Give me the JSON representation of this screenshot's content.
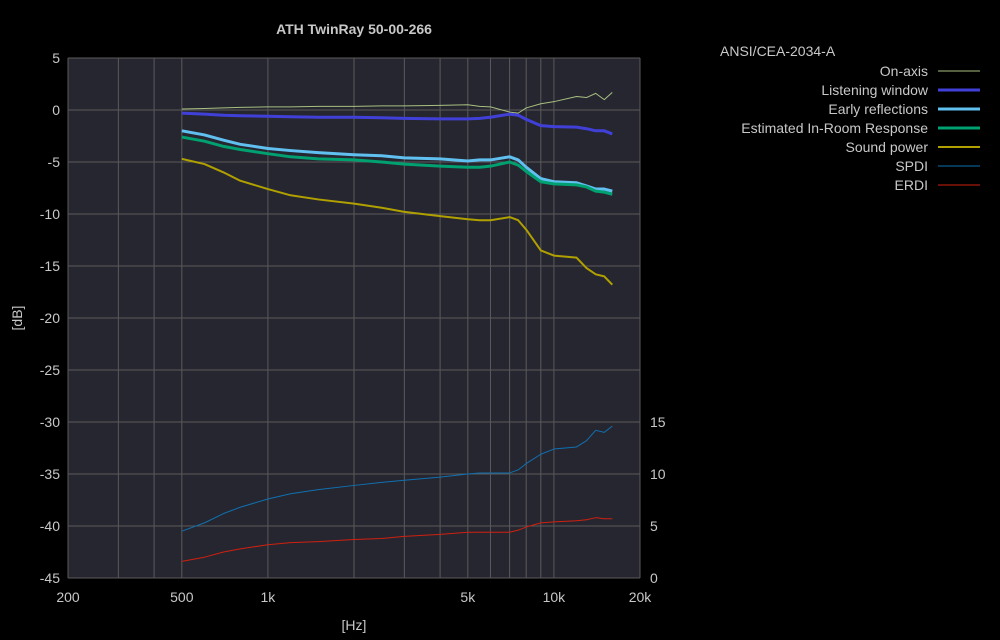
{
  "chart_data": {
    "type": "line",
    "title": "ATH TwinRay 50-00-266",
    "xlabel": "[Hz]",
    "ylabel": "[dB]",
    "xscale": "log",
    "xlim": [
      200,
      20000
    ],
    "ylim": [
      -45,
      5
    ],
    "y2lim": [
      0,
      50
    ],
    "xticks": [
      {
        "v": 200,
        "l": "200"
      },
      {
        "v": 500,
        "l": "500"
      },
      {
        "v": 1000,
        "l": "1k"
      },
      {
        "v": 5000,
        "l": "5k"
      },
      {
        "v": 10000,
        "l": "10k"
      },
      {
        "v": 20000,
        "l": "20k"
      }
    ],
    "yticks": [
      5,
      0,
      -5,
      -10,
      -15,
      -20,
      -25,
      -30,
      -35,
      -40,
      -45
    ],
    "y2ticks": [
      0,
      5,
      10,
      15
    ],
    "grid": true,
    "legend_title": "ANSI/CEA-2034-A",
    "legend_position": "right",
    "x": [
      500,
      600,
      700,
      800,
      1000,
      1200,
      1500,
      2000,
      2500,
      3000,
      4000,
      5000,
      5500,
      6000,
      7000,
      7500,
      8000,
      9000,
      10000,
      12000,
      13000,
      14000,
      15000,
      16000
    ],
    "series": [
      {
        "name": "On-axis",
        "color": "#a8c080",
        "axis": "left",
        "width": 1,
        "values": [
          0.1,
          0.15,
          0.2,
          0.25,
          0.3,
          0.3,
          0.35,
          0.35,
          0.4,
          0.4,
          0.45,
          0.5,
          0.35,
          0.3,
          -0.2,
          -0.3,
          0.2,
          0.6,
          0.8,
          1.3,
          1.2,
          1.6,
          1.0,
          1.7
        ]
      },
      {
        "name": "Listening window",
        "color": "#4040d8",
        "axis": "left",
        "width": 3,
        "values": [
          -0.3,
          -0.4,
          -0.5,
          -0.55,
          -0.6,
          -0.65,
          -0.7,
          -0.7,
          -0.75,
          -0.8,
          -0.85,
          -0.85,
          -0.8,
          -0.7,
          -0.4,
          -0.5,
          -0.9,
          -1.5,
          -1.6,
          -1.65,
          -1.8,
          -2.0,
          -2.0,
          -2.3
        ]
      },
      {
        "name": "Early reflections",
        "color": "#60c0f0",
        "axis": "left",
        "width": 3,
        "values": [
          -2.0,
          -2.4,
          -2.9,
          -3.3,
          -3.7,
          -3.9,
          -4.1,
          -4.3,
          -4.4,
          -4.6,
          -4.7,
          -4.9,
          -4.8,
          -4.8,
          -4.5,
          -4.8,
          -5.5,
          -6.6,
          -6.9,
          -7.0,
          -7.3,
          -7.6,
          -7.6,
          -7.8
        ]
      },
      {
        "name": "Estimated In-Room Response",
        "color": "#00a070",
        "axis": "left",
        "width": 3,
        "values": [
          -2.6,
          -3.0,
          -3.5,
          -3.8,
          -4.2,
          -4.5,
          -4.7,
          -4.8,
          -5.0,
          -5.2,
          -5.4,
          -5.5,
          -5.5,
          -5.4,
          -5.0,
          -5.3,
          -5.9,
          -6.9,
          -7.1,
          -7.2,
          -7.4,
          -7.8,
          -7.9,
          -8.1
        ]
      },
      {
        "name": "Sound power",
        "color": "#b0a000",
        "axis": "left",
        "width": 2,
        "values": [
          -4.7,
          -5.2,
          -6.0,
          -6.8,
          -7.6,
          -8.2,
          -8.6,
          -9.0,
          -9.4,
          -9.8,
          -10.2,
          -10.5,
          -10.6,
          -10.6,
          -10.3,
          -10.6,
          -11.5,
          -13.5,
          -14.0,
          -14.2,
          -15.2,
          -15.8,
          -16.0,
          -16.8
        ]
      },
      {
        "name": "SPDI",
        "color": "#1070b0",
        "axis": "right",
        "width": 1,
        "values": [
          4.5,
          5.3,
          6.2,
          6.8,
          7.6,
          8.1,
          8.5,
          8.9,
          9.2,
          9.4,
          9.7,
          10.0,
          10.1,
          10.1,
          10.1,
          10.4,
          11.0,
          11.9,
          12.4,
          12.6,
          13.2,
          14.2,
          14.0,
          14.6
        ]
      },
      {
        "name": "ERDI",
        "color": "#d02010",
        "axis": "right",
        "width": 1,
        "values": [
          1.6,
          2.0,
          2.5,
          2.8,
          3.2,
          3.4,
          3.5,
          3.7,
          3.8,
          4.0,
          4.2,
          4.4,
          4.4,
          4.4,
          4.4,
          4.6,
          4.9,
          5.3,
          5.4,
          5.5,
          5.6,
          5.8,
          5.7,
          5.7
        ]
      }
    ]
  }
}
